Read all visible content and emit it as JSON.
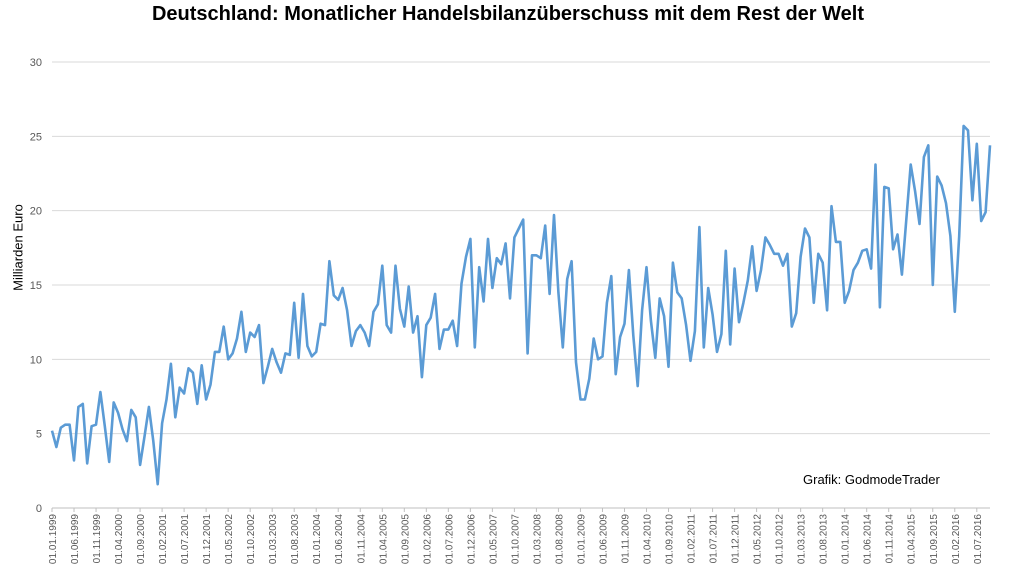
{
  "chart_data": {
    "type": "line",
    "title": "Deutschland: Monatlicher Handelsbilanzüberschuss mit dem Rest der Welt",
    "ylabel": "Milliarden Euro",
    "xlabel": "",
    "ylim": [
      0,
      30
    ],
    "yticks": [
      "0",
      "5",
      "10",
      "15",
      "20",
      "25",
      "30"
    ],
    "grid": true,
    "annotation": "Grafik: GodmodeTrader",
    "line_color": "#5b9bd5",
    "x_tick_labels": [
      "01.01.1999",
      "01.06.1999",
      "01.11.1999",
      "01.04.2000",
      "01.09.2000",
      "01.02.2001",
      "01.07.2001",
      "01.12.2001",
      "01.05.2002",
      "01.10.2002",
      "01.03.2003",
      "01.08.2003",
      "01.01.2004",
      "01.06.2004",
      "01.11.2004",
      "01.04.2005",
      "01.09.2005",
      "01.02.2006",
      "01.07.2006",
      "01.12.2006",
      "01.05.2007",
      "01.10.2007",
      "01.03.2008",
      "01.08.2008",
      "01.01.2009",
      "01.06.2009",
      "01.11.2009",
      "01.04.2010",
      "01.09.2010",
      "01.02.2011",
      "01.07.2011",
      "01.12.2011",
      "01.05.2012",
      "01.10.2012",
      "01.03.2013",
      "01.08.2013",
      "01.01.2014",
      "01.06.2014",
      "01.11.2014",
      "01.04.2015",
      "01.09.2015",
      "01.02.2016",
      "01.07.2016"
    ],
    "x_start": "01.01.1999",
    "x_end": "01.10.2016",
    "values": [
      5.2,
      4.1,
      5.4,
      5.6,
      5.6,
      3.2,
      6.8,
      7.0,
      3.0,
      5.5,
      5.6,
      7.8,
      5.5,
      3.1,
      7.1,
      6.4,
      5.3,
      4.5,
      6.6,
      6.1,
      2.9,
      4.8,
      6.8,
      4.5,
      1.6,
      5.7,
      7.3,
      9.7,
      6.1,
      8.1,
      7.7,
      9.4,
      9.1,
      7.0,
      9.6,
      7.3,
      8.3,
      10.5,
      10.5,
      12.2,
      10.0,
      10.4,
      11.4,
      13.2,
      10.5,
      11.8,
      11.5,
      12.3,
      8.4,
      9.5,
      10.7,
      9.8,
      9.1,
      10.4,
      10.3,
      13.8,
      10.1,
      14.4,
      10.9,
      10.2,
      10.5,
      12.4,
      12.3,
      16.6,
      14.3,
      14.0,
      14.8,
      13.3,
      10.9,
      11.9,
      12.3,
      11.8,
      10.9,
      13.2,
      13.7,
      16.3,
      12.3,
      11.8,
      16.3,
      13.4,
      12.2,
      14.9,
      11.8,
      12.9,
      8.8,
      12.3,
      12.8,
      14.4,
      10.7,
      12.0,
      12.0,
      12.6,
      10.9,
      15.1,
      16.9,
      18.1,
      10.8,
      16.2,
      13.9,
      18.1,
      14.8,
      16.8,
      16.4,
      17.8,
      14.1,
      18.2,
      18.8,
      19.4,
      10.4,
      17.0,
      17.0,
      16.8,
      19.0,
      14.4,
      19.7,
      14.5,
      10.8,
      15.4,
      16.6,
      9.8,
      7.3,
      7.3,
      8.7,
      11.4,
      10.0,
      10.2,
      13.8,
      15.6,
      9.0,
      11.5,
      12.4,
      16.0,
      11.6,
      8.2,
      13.3,
      16.2,
      12.6,
      10.1,
      14.1,
      12.9,
      9.5,
      16.5,
      14.5,
      14.1,
      12.3,
      9.9,
      11.9,
      18.9,
      10.8,
      14.8,
      13.0,
      10.5,
      11.7,
      17.3,
      11.0,
      16.1,
      12.5,
      13.8,
      15.3,
      17.6,
      14.6,
      16.0,
      18.2,
      17.7,
      17.1,
      17.1,
      16.3,
      17.1,
      12.2,
      13.1,
      16.9,
      18.8,
      18.2,
      13.8,
      17.1,
      16.5,
      13.3,
      20.3,
      17.9,
      17.9,
      13.8,
      14.6,
      16.0,
      16.5,
      17.3,
      17.4,
      16.1,
      23.1,
      13.5,
      21.6,
      21.5,
      17.4,
      18.4,
      15.7,
      19.4,
      23.1,
      21.3,
      19.1,
      23.6,
      24.4,
      15.0,
      22.3,
      21.7,
      20.5,
      18.3,
      13.2,
      18.3,
      25.7,
      25.4,
      20.7,
      24.5,
      19.3,
      19.9,
      24.4
    ]
  }
}
